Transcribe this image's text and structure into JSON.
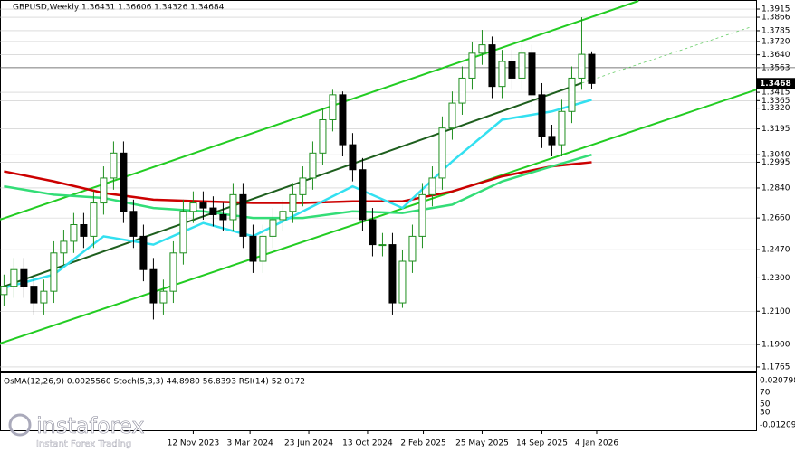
{
  "chart_data": {
    "type": "candlestick",
    "title": "GBPUSD,Weekly  1.36431 1.36606 1.34326 1.34684",
    "open": [
      1.22,
      1.225,
      1.235,
      1.225,
      1.215,
      1.222,
      1.245,
      1.252,
      1.262,
      1.255,
      1.275,
      1.29,
      1.305,
      1.27,
      1.255,
      1.235,
      1.215,
      1.222,
      1.245,
      1.27,
      1.275,
      1.272,
      1.268,
      1.265,
      1.28,
      1.255,
      1.24,
      1.255,
      1.265,
      1.27,
      1.28,
      1.29,
      1.305,
      1.325,
      1.34,
      1.31,
      1.295,
      1.265,
      1.25,
      1.25,
      1.215,
      1.24,
      1.255,
      1.28,
      1.29,
      1.32,
      1.335,
      1.35,
      1.365,
      1.37,
      1.345,
      1.36,
      1.35,
      1.365,
      1.34,
      1.315,
      1.31,
      1.33,
      1.35,
      1.3643
    ],
    "high": [
      1.232,
      1.242,
      1.242,
      1.232,
      1.229,
      1.252,
      1.259,
      1.269,
      1.269,
      1.282,
      1.297,
      1.312,
      1.312,
      1.277,
      1.262,
      1.242,
      1.229,
      1.252,
      1.277,
      1.282,
      1.282,
      1.279,
      1.275,
      1.287,
      1.287,
      1.262,
      1.262,
      1.272,
      1.277,
      1.287,
      1.297,
      1.312,
      1.332,
      1.343,
      1.342,
      1.317,
      1.302,
      1.272,
      1.257,
      1.257,
      1.247,
      1.262,
      1.287,
      1.297,
      1.327,
      1.342,
      1.357,
      1.372,
      1.379,
      1.375,
      1.367,
      1.367,
      1.372,
      1.37,
      1.347,
      1.322,
      1.337,
      1.357,
      1.3866,
      1.3661
    ],
    "low": [
      1.213,
      1.218,
      1.218,
      1.208,
      1.208,
      1.215,
      1.238,
      1.245,
      1.248,
      1.248,
      1.268,
      1.283,
      1.263,
      1.248,
      1.228,
      1.205,
      1.208,
      1.215,
      1.238,
      1.263,
      1.265,
      1.261,
      1.258,
      1.258,
      1.248,
      1.233,
      1.233,
      1.248,
      1.258,
      1.263,
      1.273,
      1.283,
      1.298,
      1.318,
      1.303,
      1.288,
      1.258,
      1.243,
      1.243,
      1.208,
      1.212,
      1.233,
      1.248,
      1.273,
      1.283,
      1.313,
      1.328,
      1.343,
      1.358,
      1.338,
      1.338,
      1.343,
      1.343,
      1.333,
      1.308,
      1.303,
      1.303,
      1.323,
      1.343,
      1.3433
    ],
    "close": [
      1.225,
      1.235,
      1.225,
      1.215,
      1.222,
      1.245,
      1.252,
      1.262,
      1.255,
      1.275,
      1.29,
      1.305,
      1.27,
      1.255,
      1.235,
      1.215,
      1.222,
      1.245,
      1.27,
      1.275,
      1.272,
      1.268,
      1.265,
      1.28,
      1.255,
      1.24,
      1.255,
      1.265,
      1.27,
      1.28,
      1.29,
      1.305,
      1.325,
      1.34,
      1.31,
      1.295,
      1.265,
      1.25,
      1.25,
      1.215,
      1.24,
      1.255,
      1.28,
      1.29,
      1.32,
      1.335,
      1.35,
      1.365,
      1.37,
      1.345,
      1.36,
      1.35,
      1.365,
      1.34,
      1.315,
      1.31,
      1.33,
      1.35,
      1.3643,
      1.3468
    ],
    "up_color": "#1f8f1f",
    "down_color": "#000000",
    "series": [
      {
        "color": "#cc0000",
        "x": [
          0,
          5,
          10,
          15,
          20,
          25,
          30,
          35,
          40,
          45,
          50,
          55,
          59
        ],
        "values": [
          1.294,
          1.288,
          1.281,
          1.277,
          1.276,
          1.275,
          1.275,
          1.276,
          1.276,
          1.282,
          1.291,
          1.297,
          1.2995
        ]
      },
      {
        "color": "#33dd77",
        "x": [
          0,
          5,
          10,
          15,
          20,
          25,
          30,
          35,
          40,
          45,
          50,
          55,
          59
        ],
        "values": [
          1.285,
          1.28,
          1.278,
          1.272,
          1.27,
          1.266,
          1.266,
          1.27,
          1.269,
          1.274,
          1.288,
          1.297,
          1.304
        ]
      },
      {
        "color": "#33e0f0",
        "x": [
          0,
          5,
          10,
          15,
          20,
          25,
          30,
          35,
          40,
          45,
          50,
          55,
          59
        ],
        "values": [
          1.224,
          1.232,
          1.255,
          1.25,
          1.263,
          1.255,
          1.27,
          1.285,
          1.272,
          1.3,
          1.325,
          1.33,
          1.337
        ]
      }
    ],
    "trendlines": [
      {
        "color": "#22cc22",
        "x": [
          -0.4,
          63.7
        ],
        "y": [
          1.265,
          1.3964
        ]
      },
      {
        "color": "#22cc22",
        "x": [
          -0.4,
          75.5
        ],
        "y": [
          1.1906,
          1.343
        ]
      },
      {
        "color": "#1d5e1d",
        "x": [
          -0.4,
          58
        ],
        "y": [
          1.224,
          1.347
        ]
      },
      {
        "color": "#66cc66",
        "dashed": true,
        "x": [
          58,
          75.1
        ],
        "y": [
          1.347,
          1.381
        ]
      }
    ],
    "hline": 1.3563,
    "xlim": [
      -0.4,
      75.5
    ],
    "ylim": [
      1.1743,
      1.3964
    ],
    "xticks": [
      {
        "value": 19,
        "label": "12 Nov 2023"
      },
      {
        "value": 24.7,
        "label": "3 Mar 2024"
      },
      {
        "value": 30.6,
        "label": "23 Jun 2024"
      },
      {
        "value": 36.5,
        "label": "13 Oct 2024"
      },
      {
        "value": 42.1,
        "label": "2 Feb 2025"
      },
      {
        "value": 48,
        "label": "25 May 2025"
      },
      {
        "value": 54,
        "label": "14 Sep 2025"
      },
      {
        "value": 59.5,
        "label": "4 Jan 2026"
      }
    ],
    "yticks": [
      1.3915,
      1.3866,
      1.3785,
      {
        "value": 1.372,
        "label": "1.3720"
      },
      {
        "value": 1.364,
        "label": "1.3640"
      },
      1.3563,
      1.3415,
      1.3365,
      {
        "value": 1.332,
        "label": "1.3320"
      },
      1.3195,
      {
        "value": 1.304,
        "label": "1.3040"
      },
      1.2995,
      {
        "value": 1.284,
        "label": "1.2840"
      },
      {
        "value": 1.266,
        "label": "1.2660"
      },
      {
        "value": 1.247,
        "label": "1.2470"
      },
      {
        "value": 1.23,
        "label": "1.2300"
      },
      {
        "value": 1.21,
        "label": "1.2100"
      },
      {
        "value": 1.19,
        "label": "1.1900"
      },
      1.1765
    ],
    "last_price": {
      "value": 1.34684,
      "label": "1.3468"
    },
    "grid": true,
    "indicator_label": "OsMA(12,26,9) 0.0025560  Stoch(5,3,3) 44.8980 56.8393  RSI(14) 52.0172",
    "indicator_axis_labels": [
      "0.020798",
      "70",
      "50",
      "30",
      "-0.01209"
    ],
    "brand": "instaforex",
    "brand_sub": "Instant Forex Trading"
  }
}
